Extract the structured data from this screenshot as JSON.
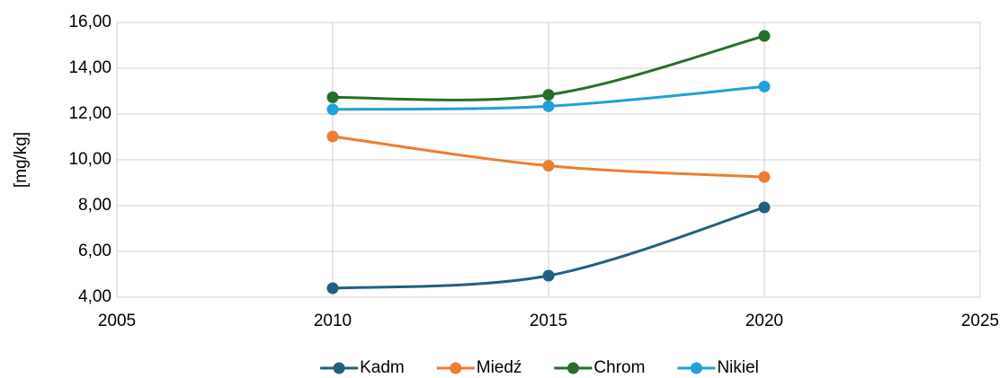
{
  "chart_data": {
    "type": "line",
    "y_label": "[mg/kg]",
    "x": [
      2010,
      2015,
      2020
    ],
    "series": [
      {
        "name": "Kadm",
        "color": "#215f80",
        "values": [
          4.39,
          4.94,
          7.92
        ]
      },
      {
        "name": "Miedź",
        "color": "#ed7d31",
        "values": [
          11.02,
          9.74,
          9.25
        ]
      },
      {
        "name": "Chrom",
        "color": "#24702a",
        "values": [
          12.73,
          12.84,
          15.41
        ]
      },
      {
        "name": "Nikiel",
        "color": "#1fa1d9",
        "values": [
          12.2,
          12.34,
          13.2
        ]
      }
    ],
    "xlim": [
      2005,
      2025
    ],
    "xticks": [
      2005,
      2010,
      2015,
      2020,
      2025
    ],
    "ylim": [
      4,
      16
    ],
    "yticks": [
      {
        "value": 4,
        "label": "4,00"
      },
      {
        "value": 6,
        "label": "6,00"
      },
      {
        "value": 8,
        "label": "8,00"
      },
      {
        "value": 10,
        "label": "10,00"
      },
      {
        "value": 12,
        "label": "12,00"
      },
      {
        "value": 14,
        "label": "14,00"
      },
      {
        "value": 16,
        "label": "16,00"
      }
    ],
    "grid": true,
    "legend": "bottom",
    "smooth": true
  }
}
